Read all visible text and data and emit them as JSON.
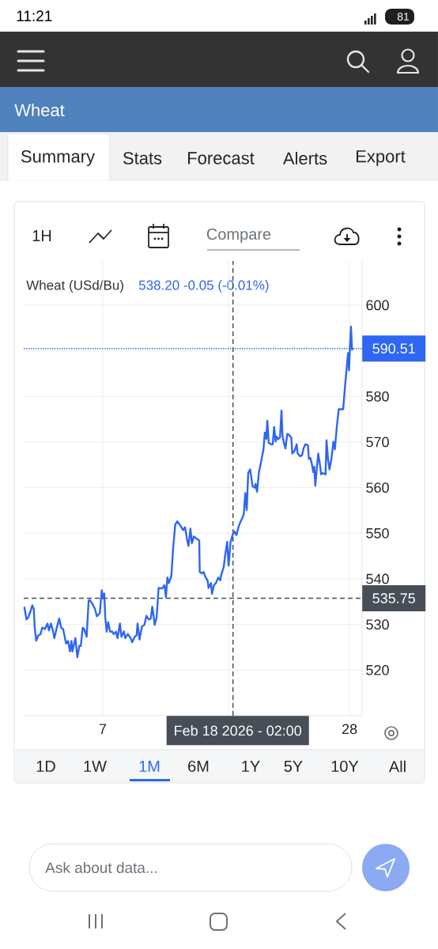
{
  "chart_data": {
    "type": "line",
    "title": "Wheat",
    "subtitle": "Wheat (USd/Bu)",
    "annotations": [
      "11:21",
      "Summary",
      "Stats",
      "Forecast",
      "Alerts",
      "Export",
      "1H",
      "Compare",
      "538.20  -0.05 (-0.01%)",
      "1D",
      "1W",
      "1M",
      "6M",
      "1Y",
      "5Y",
      "10Y",
      "All",
      "Ask about data...",
      "81"
    ],
    "x": [
      "2026-01-31T08:00",
      "2026-01-31T12:00",
      "2026-01-31T16:00",
      "2026-01-31T20:00",
      "2026-02-01T00:00",
      "2026-02-01T03:00",
      "2026-02-01T05:00",
      "2026-02-01T08:00",
      "2026-02-01T12:00",
      "2026-02-01T17:00",
      "2026-02-01T20:00",
      "2026-02-02T02:00",
      "2026-02-02T07:00",
      "2026-02-02T10:00",
      "2026-02-02T14:00",
      "2026-02-02T18:00",
      "2026-02-02T21:00",
      "2026-02-03T02:00",
      "2026-02-03T07:00",
      "2026-02-03T11:00",
      "2026-02-03T15:00",
      "2026-02-03T21:00",
      "2026-02-04T01:00",
      "2026-02-04T05:00",
      "2026-02-04T08:00",
      "2026-02-04T10:00",
      "2026-02-04T16:00",
      "2026-02-04T20:00",
      "2026-02-05T00:00",
      "2026-02-05T03:00",
      "2026-02-05T07:00",
      "2026-02-05T10:00",
      "2026-02-05T15:00",
      "2026-02-05T19:00",
      "2026-02-05T21:00",
      "2026-02-06T03:00",
      "2026-02-06T08:00",
      "2026-02-06T12:00",
      "2026-02-06T18:00",
      "2026-02-06T19:00",
      "2026-02-06T22:00",
      "2026-02-07T00:00",
      "2026-02-07T03:00",
      "2026-02-07T05:00",
      "2026-02-07T08:00",
      "2026-02-07T11:00",
      "2026-02-07T15:00",
      "2026-02-07T19:00",
      "2026-02-07T22:00",
      "2026-02-08T03:00",
      "2026-02-08T06:00",
      "2026-02-08T11:00",
      "2026-02-08T14:00",
      "2026-02-08T19:00",
      "2026-02-08T22:00",
      "2026-02-09T03:00",
      "2026-02-09T09:00",
      "2026-02-09T12:00",
      "2026-02-09T17:00",
      "2026-02-09T21:00",
      "2026-02-09T23:00",
      "2026-02-10T03:00",
      "2026-02-10T08:00",
      "2026-02-10T13:00",
      "2026-02-10T17:00",
      "2026-02-10T22:00",
      "2026-02-11T02:00",
      "2026-02-11T05:00",
      "2026-02-11T07:00",
      "2026-02-11T10:00",
      "2026-02-11T14:00",
      "2026-02-11T18:00",
      "2026-02-12T01:00",
      "2026-02-12T06:00",
      "2026-02-12T09:00",
      "2026-02-12T12:00",
      "2026-02-12T15:00",
      "2026-02-12T20:00",
      "2026-02-13T00:00",
      "2026-02-13T04:00",
      "2026-02-13T08:00",
      "2026-02-13T15:00",
      "2026-02-13T20:00",
      "2026-02-14T00:00",
      "2026-02-14T04:00",
      "2026-02-14T07:00",
      "2026-02-14T11:00",
      "2026-02-14T14:00",
      "2026-02-14T18:00",
      "2026-02-15T01:00",
      "2026-02-15T05:00",
      "2026-02-15T06:00",
      "2026-02-15T10:00",
      "2026-02-15T14:00",
      "2026-02-15T18:00",
      "2026-02-15T22:00",
      "2026-02-16T00:00",
      "2026-02-16T05:00",
      "2026-02-16T07:00",
      "2026-02-16T11:00",
      "2026-02-16T15:00",
      "2026-02-16T20:00",
      "2026-02-17T00:00",
      "2026-02-17T02:00",
      "2026-02-17T07:00",
      "2026-02-17T10:00",
      "2026-02-17T14:00",
      "2026-02-17T17:00",
      "2026-02-17T21:00",
      "2026-02-18T01:00",
      "2026-02-18T05:00",
      "2026-02-18T09:00",
      "2026-02-18T13:00",
      "2026-02-18T17:00",
      "2026-02-18T21:00",
      "2026-02-19T00:00",
      "2026-02-19T03:00",
      "2026-02-19T06:00",
      "2026-02-19T09:00",
      "2026-02-19T13:00",
      "2026-02-19T18:00",
      "2026-02-19T22:00",
      "2026-02-20T00:00",
      "2026-02-20T03:00",
      "2026-02-20T07:00",
      "2026-02-20T11:00",
      "2026-02-20T14:00",
      "2026-02-20T16:00",
      "2026-02-20T19:00",
      "2026-02-20T22:00",
      "2026-02-21T00:00",
      "2026-02-21T03:00",
      "2026-02-21T08:00",
      "2026-02-21T11:00",
      "2026-02-21T14:00",
      "2026-02-21T17:00",
      "2026-02-21T19:00",
      "2026-02-21T22:00",
      "2026-02-22T02:00",
      "2026-02-22T05:00",
      "2026-02-22T07:00",
      "2026-02-22T10:00",
      "2026-02-22T13:00",
      "2026-02-22T17:00",
      "2026-02-22T21:00",
      "2026-02-23T01:00",
      "2026-02-23T03:00",
      "2026-02-23T08:00",
      "2026-02-23T12:00",
      "2026-02-23T14:00",
      "2026-02-23T19:00",
      "2026-02-23T23:00",
      "2026-02-24T02:00",
      "2026-02-24T06:00",
      "2026-02-24T11:00",
      "2026-02-24T13:00",
      "2026-02-24T16:00",
      "2026-02-24T19:00",
      "2026-02-24T22:00",
      "2026-02-25T00:00",
      "2026-02-25T02:00",
      "2026-02-25T05:00",
      "2026-02-25T08:00",
      "2026-02-25T11:00",
      "2026-02-25T14:00",
      "2026-02-25T17:00",
      "2026-02-25T23:00",
      "2026-02-26T01:00",
      "2026-02-26T04:00",
      "2026-02-26T07:00",
      "2026-02-26T11:00",
      "2026-02-26T15:00",
      "2026-02-26T18:00",
      "2026-02-26T22:00",
      "2026-02-27T02:00",
      "2026-02-27T11:00",
      "2026-02-27T15:00",
      "2026-02-27T18:00",
      "2026-02-27T21:00",
      "2026-02-27T23:00",
      "2026-02-28T01:00",
      "2026-02-28T03:00",
      "2026-02-28T05:00",
      "2026-02-28T06:00"
    ],
    "values": [
      533.7,
      531.1,
      531.6,
      532.8,
      534.2,
      533.4,
      529.3,
      526.4,
      527.6,
      527.9,
      529.3,
      529.0,
      530.2,
      528.7,
      530.2,
      528.7,
      527.0,
      529.3,
      531.3,
      529.3,
      529.0,
      525.8,
      526.4,
      524.1,
      526.4,
      524.1,
      527.0,
      522.8,
      525.3,
      525.3,
      529.3,
      529.0,
      527.3,
      535.1,
      535.4,
      534.5,
      533.4,
      531.8,
      532.5,
      533.9,
      537.5,
      535.7,
      536.8,
      531.6,
      528.4,
      530.5,
      528.4,
      528.5,
      527.9,
      528.4,
      527.0,
      530.2,
      527.3,
      528.5,
      527.0,
      527.9,
      527.0,
      526.1,
      527.3,
      527.6,
      530.2,
      526.7,
      529.6,
      529.9,
      531.9,
      531.1,
      531.3,
      533.9,
      532.5,
      529.9,
      531.6,
      538.0,
      537.9,
      538.6,
      536.0,
      540.3,
      539.1,
      540.6,
      547.2,
      551.9,
      552.6,
      551.6,
      550.7,
      551.3,
      548.7,
      547.2,
      551.0,
      547.8,
      549.3,
      548.7,
      548.4,
      541.5,
      541.2,
      541.5,
      540.3,
      539.7,
      538.0,
      539.1,
      536.7,
      538.6,
      539.1,
      540.3,
      539.7,
      540.9,
      542.6,
      545.2,
      548.1,
      542.9,
      548.1,
      549.6,
      550.4,
      549.6,
      551.3,
      552.5,
      553.3,
      554.2,
      558.8,
      555.1,
      563.2,
      564.0,
      560.3,
      560.0,
      560.8,
      559.1,
      563.4,
      565.5,
      567.2,
      568.2,
      572.1,
      570.7,
      574.7,
      569.8,
      569.5,
      569.5,
      573.3,
      570.1,
      571.2,
      570.6,
      571.0,
      576.9,
      571.5,
      569.8,
      568.6,
      571.8,
      571.5,
      571.0,
      567.5,
      568.1,
      569.5,
      567.5,
      566.9,
      567.1,
      568.6,
      569.5,
      569.3,
      566.3,
      566.5,
      565.2,
      563.4,
      564.6,
      560.4,
      564.0,
      567.5,
      565.5,
      562.9,
      563.2,
      562.9,
      570.4,
      566.3,
      564.0,
      566.3,
      570.1,
      568.4,
      573.3,
      577.2,
      577.2,
      582.5,
      586.0,
      589.5,
      585.7,
      591.2,
      595.3,
      590.3,
      590.5
    ],
    "color": "#2f66f2",
    "xlim": [
      "2026-01-31T06:28",
      "2026-03-01T01:40"
    ],
    "xticks": [
      {
        "value": "2026-02-07",
        "label": "7"
      },
      {
        "value": "2026-02-17T17:00",
        "label": null
      },
      {
        "value": "2026-02-28",
        "label": "28"
      }
    ],
    "ylim": [
      510,
      609.7
    ],
    "yticks": [
      520,
      530,
      540,
      550,
      560,
      570,
      580,
      {
        "value": 590,
        "label": null
      },
      600
    ],
    "grid": true,
    "ref_lines": [
      {
        "axis": "y",
        "value": 590.51,
        "label": "590.51",
        "color": "#2f66f2",
        "line_style": "dotted"
      },
      {
        "axis": "y",
        "value": 535.75,
        "label": "535.75",
        "color": "#484e58",
        "line_style": "dashed"
      },
      {
        "axis": "x",
        "value": "2026-02-18T02:00",
        "label": "Feb 18 2026 - 02:00",
        "color": "#484e58",
        "line_style": "dashed"
      }
    ]
  }
}
